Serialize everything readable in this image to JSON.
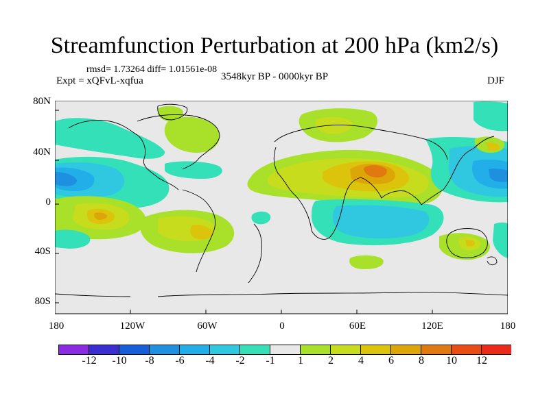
{
  "title": "Streamfunction Perturbation at 200 hPa (km2/s)",
  "stats": "rmsd= 1.73264 diff= 1.01561e-08",
  "experiment": "Expt = xQFvL-xqfua",
  "period": "3548kyr BP - 0000kyr BP",
  "season": "DJF",
  "map": {
    "lon_range": [
      -180,
      180
    ],
    "lat_range": [
      -90,
      90
    ],
    "background": "#e8e8e8",
    "lat_ticks": [
      "80N",
      "40N",
      "0",
      "40S",
      "80S"
    ],
    "lon_ticks": [
      "180",
      "120W",
      "60W",
      "0",
      "60E",
      "120E",
      "180"
    ]
  },
  "colorbar": {
    "colors": [
      "#8a2be2",
      "#3a2ed0",
      "#1560d8",
      "#1f8fe0",
      "#22aee8",
      "#30c8e0",
      "#33e0b8",
      "#e8e8e8",
      "#a8e02a",
      "#c8dc1e",
      "#dcc40c",
      "#dca608",
      "#e07a10",
      "#e84e14",
      "#ea2a1a"
    ],
    "labels": [
      "-12",
      "-10",
      "-8",
      "-6",
      "-4",
      "-2",
      "-1",
      "1",
      "2",
      "4",
      "6",
      "8",
      "10",
      "12"
    ]
  }
}
